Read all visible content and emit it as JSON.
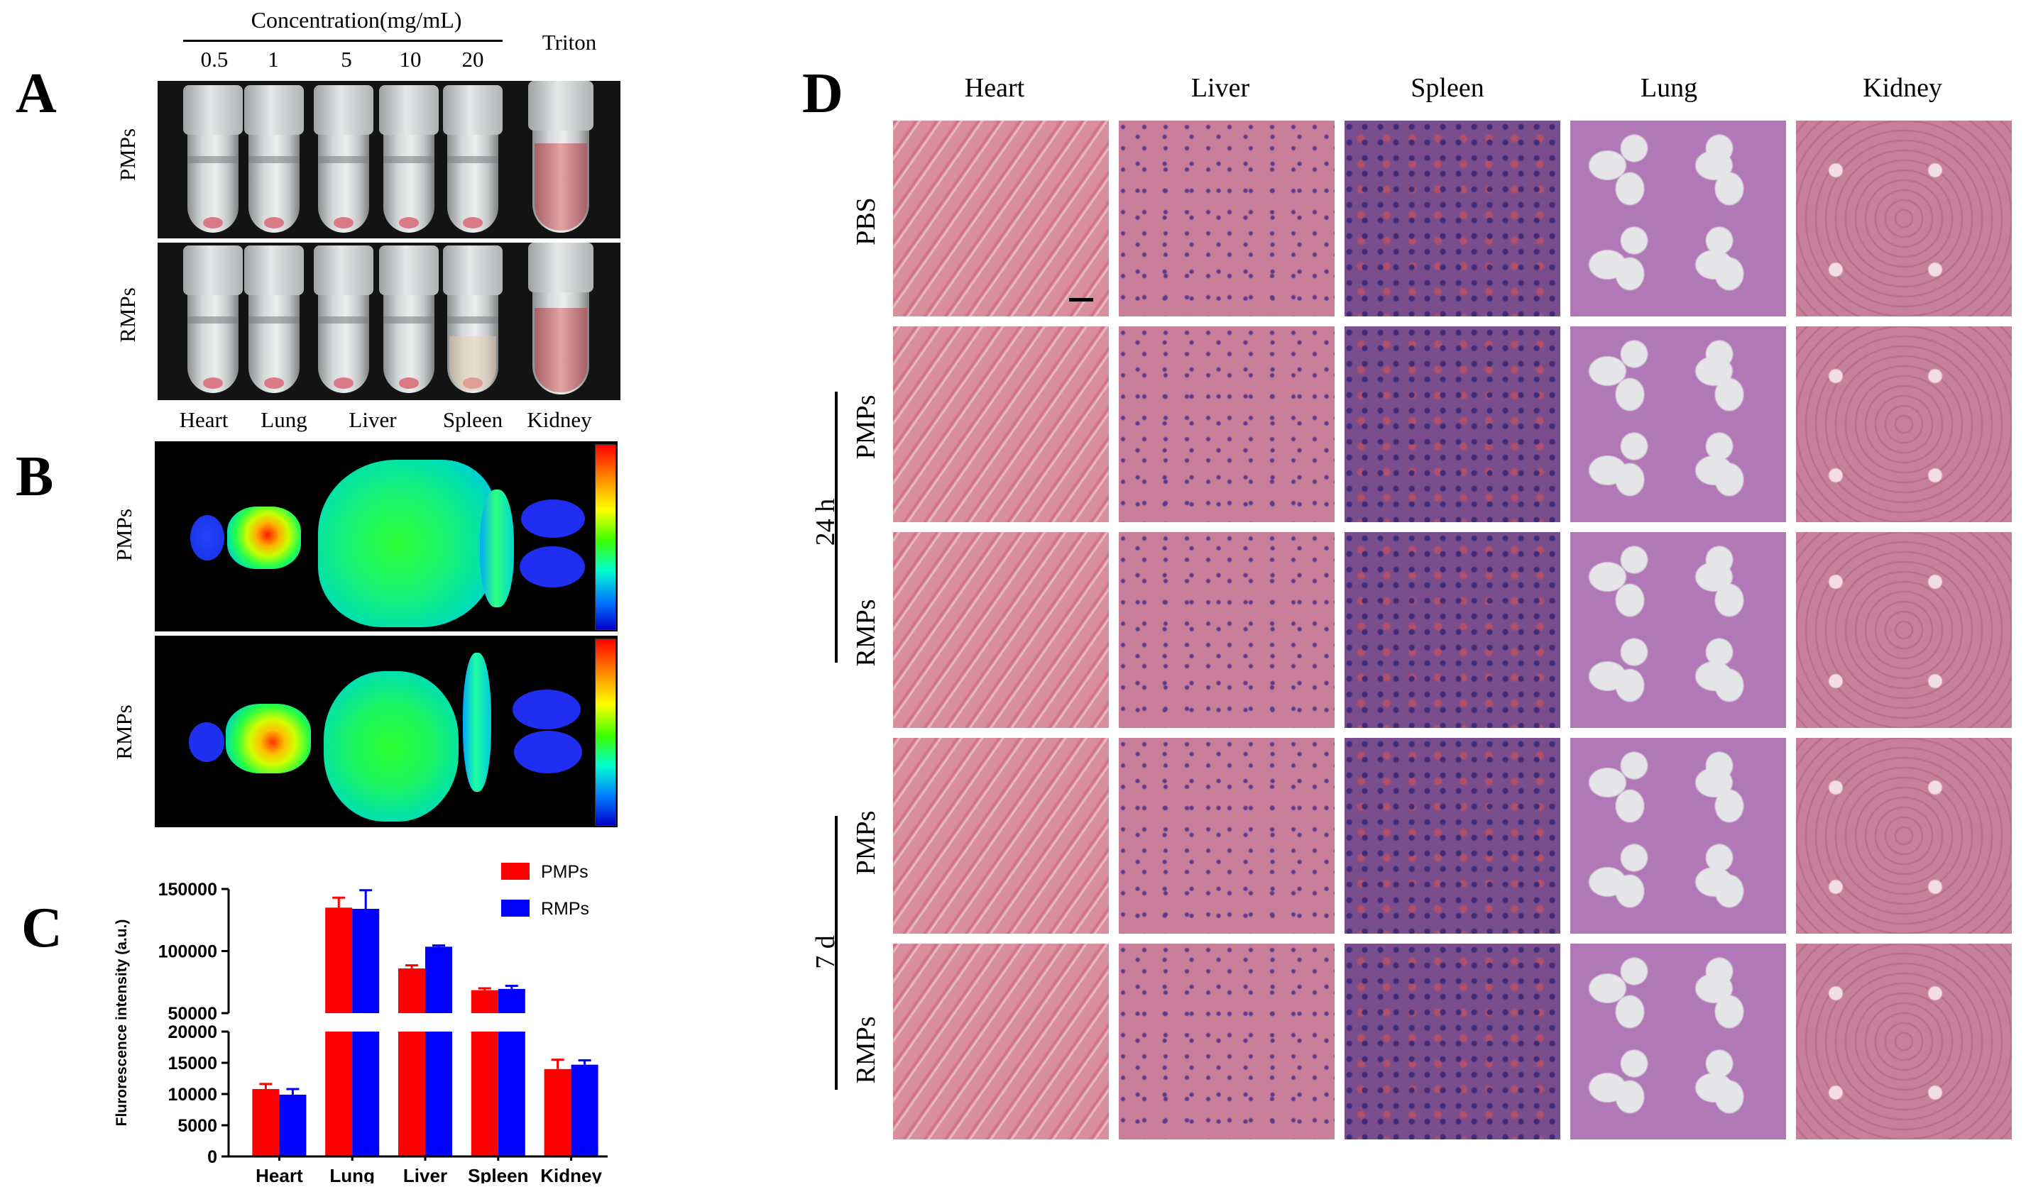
{
  "panel_labels": {
    "a": "A",
    "b": "B",
    "c": "C",
    "d": "D"
  },
  "panel_a": {
    "concentration_title": "Concentration(mg/mL)",
    "concentrations": [
      "0.5",
      "1",
      "5",
      "10",
      "20"
    ],
    "triton_label": "Triton",
    "rows": [
      "PMPs",
      "RMPs"
    ]
  },
  "panel_b": {
    "organs": [
      "Heart",
      "Lung",
      "Liver",
      "Spleen",
      "Kidney"
    ],
    "rows": [
      "PMPs",
      "RMPs"
    ]
  },
  "panel_c": {
    "legend": [
      {
        "name": "PMPs",
        "color": "#ff0000"
      },
      {
        "name": "RMPs",
        "color": "#0000ff"
      }
    ]
  },
  "chart_data": {
    "type": "bar",
    "ylabel": "Flurorescence intensity (a.u.)",
    "categories": [
      "Heart",
      "Lung",
      "Liver",
      "Spleen",
      "Kidney"
    ],
    "series": [
      {
        "name": "PMPs",
        "color": "#ff0000",
        "values": [
          10800,
          135000,
          86000,
          68500,
          14000
        ],
        "errors": [
          800,
          8000,
          2500,
          1500,
          1500
        ]
      },
      {
        "name": "RMPs",
        "color": "#0000ff",
        "values": [
          9900,
          134000,
          103500,
          69500,
          14700
        ],
        "errors": [
          900,
          15000,
          1000,
          2500,
          700
        ]
      }
    ],
    "broken_axis": {
      "lower_range": [
        0,
        20000
      ],
      "upper_range": [
        50000,
        150000
      ]
    },
    "lower_ticks": [
      "0",
      "5000",
      "10000",
      "15000",
      "20000"
    ],
    "upper_ticks": [
      "50000",
      "100000",
      "150000"
    ]
  },
  "panel_d": {
    "columns": [
      "Heart",
      "Liver",
      "Spleen",
      "Lung",
      "Kidney"
    ],
    "rows": [
      "PBS",
      "PMPs",
      "RMPs",
      "PMPs",
      "RMPs"
    ],
    "groups": [
      "24 h",
      "7 d"
    ],
    "tissue_colors": {
      "Heart": "#d98e9c",
      "Liver": "#c97f9a",
      "Spleen": "#7a4d8c",
      "Lung": "#b078b6",
      "Kidney": "#c68099"
    }
  }
}
